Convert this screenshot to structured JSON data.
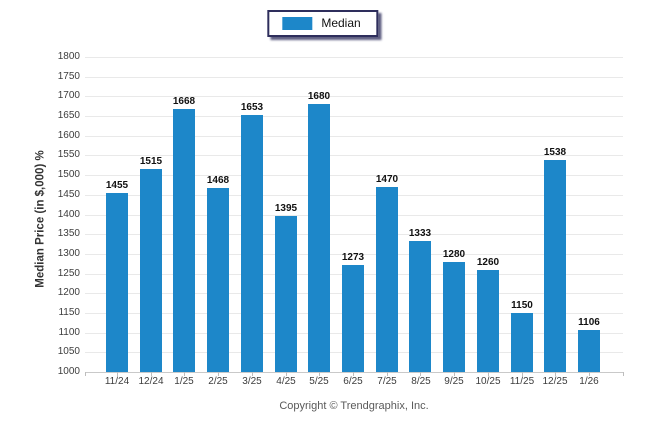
{
  "legend": {
    "label": "Median",
    "swatch_color": "#1d87c9"
  },
  "footer": {
    "copyright": "Copyright © Trendgraphix, Inc."
  },
  "chart_data": {
    "type": "bar",
    "title": "",
    "xlabel": "",
    "ylabel": "Median Price (in $,000) %",
    "categories": [
      "11/24",
      "12/24",
      "1/25",
      "2/25",
      "3/25",
      "4/25",
      "5/25",
      "6/25",
      "7/25",
      "8/25",
      "9/25",
      "10/25",
      "11/25",
      "12/25",
      "1/26"
    ],
    "series": [
      {
        "name": "Median",
        "values": [
          1455,
          1515,
          1668,
          1468,
          1653,
          1395,
          1680,
          1273,
          1470,
          1333,
          1280,
          1260,
          1150,
          1538,
          1106
        ]
      }
    ],
    "value_labels": true,
    "ylim": [
      1000,
      1800
    ],
    "yticks": [
      1000,
      1050,
      1100,
      1150,
      1200,
      1250,
      1300,
      1350,
      1400,
      1450,
      1500,
      1550,
      1600,
      1650,
      1700,
      1750,
      1800
    ],
    "grid": true,
    "gridline_color": "#e9e9e9",
    "baseline_color": "#c9c9c9",
    "bar_color": "#1d87c9",
    "legend_position": "top-center"
  }
}
